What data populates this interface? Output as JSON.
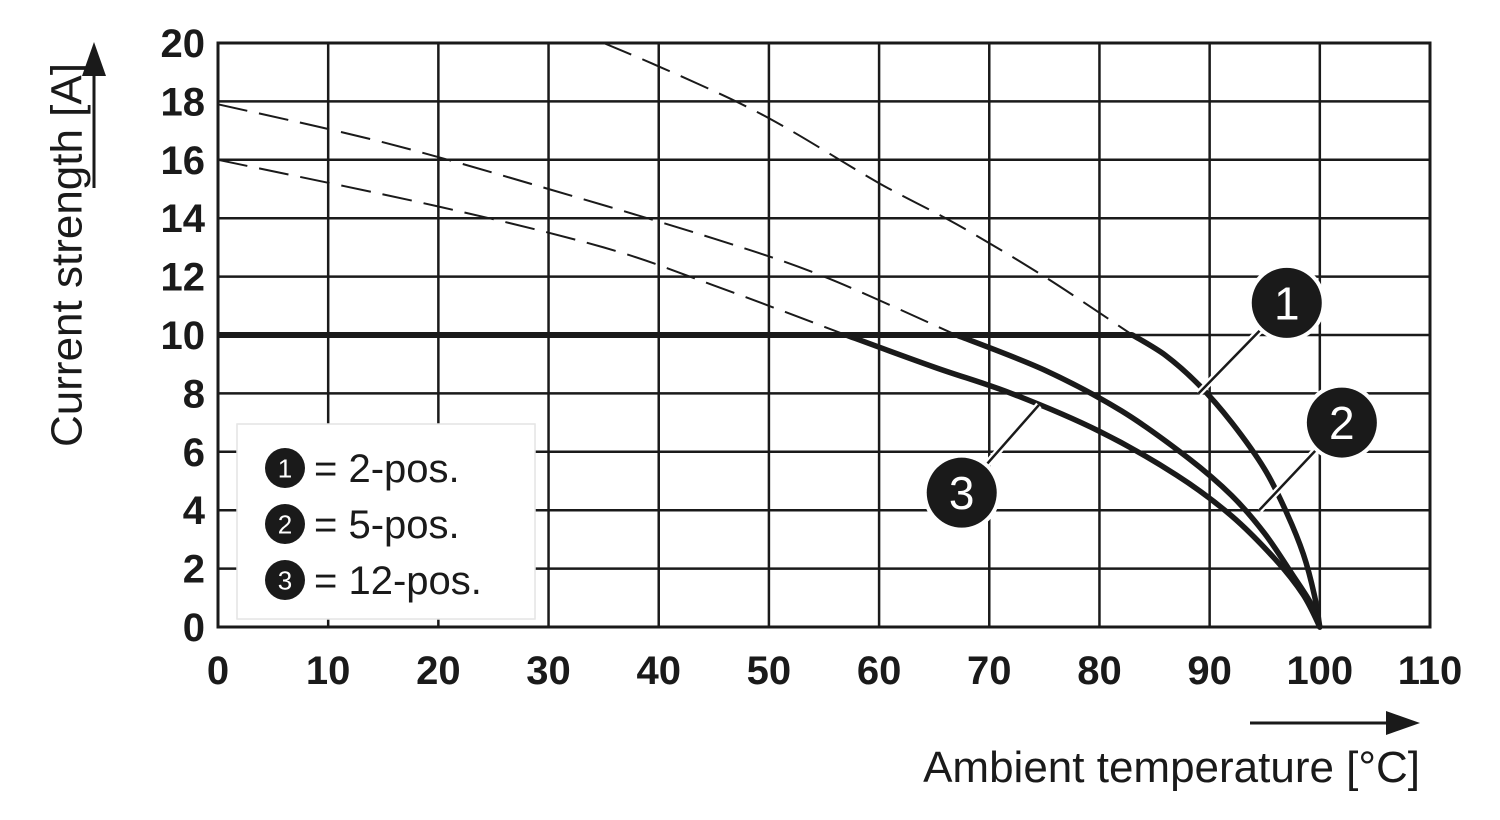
{
  "chart_data": {
    "type": "line",
    "title": "",
    "xlabel": "Ambient temperature [°C]",
    "ylabel": "Current strength [A]",
    "xlim": [
      0,
      110
    ],
    "ylim": [
      0,
      20
    ],
    "x_ticks": [
      "0",
      "10",
      "20",
      "30",
      "40",
      "50",
      "60",
      "70",
      "80",
      "90",
      "100",
      "110"
    ],
    "y_ticks": [
      "0",
      "2",
      "4",
      "6",
      "8",
      "10",
      "12",
      "14",
      "16",
      "18",
      "20"
    ],
    "grid": true,
    "legend_position": "bottom-left",
    "legend": [
      {
        "marker": "1",
        "label": "= 2-pos."
      },
      {
        "marker": "2",
        "label": "= 5-pos."
      },
      {
        "marker": "3",
        "label": "= 12-pos."
      }
    ],
    "plateau": {
      "value": 10,
      "x_range": [
        0,
        83
      ]
    },
    "series": [
      {
        "marker": "1",
        "derating": [
          [
            83,
            10
          ],
          [
            86,
            9.3
          ],
          [
            89,
            8.3
          ],
          [
            92,
            7.0
          ],
          [
            95,
            5.4
          ],
          [
            97,
            3.9
          ],
          [
            98.5,
            2.5
          ],
          [
            99.5,
            1.1
          ],
          [
            100,
            0
          ]
        ],
        "extrapolation": [
          [
            35,
            20
          ],
          [
            40,
            19.2
          ],
          [
            47,
            18
          ],
          [
            52,
            17
          ],
          [
            60,
            15.2
          ],
          [
            67,
            13.8
          ],
          [
            75,
            12
          ],
          [
            83,
            10
          ]
        ]
      },
      {
        "marker": "2",
        "derating": [
          [
            67,
            10
          ],
          [
            75,
            8.8
          ],
          [
            82,
            7.4
          ],
          [
            88,
            5.8
          ],
          [
            92,
            4.5
          ],
          [
            95,
            3.2
          ],
          [
            97.5,
            1.8
          ],
          [
            99.2,
            0.8
          ],
          [
            100,
            0
          ]
        ],
        "extrapolation": [
          [
            0,
            17.9
          ],
          [
            15,
            16.6
          ],
          [
            30,
            15.0
          ],
          [
            45,
            13.3
          ],
          [
            55,
            12.0
          ],
          [
            67,
            10
          ]
        ]
      },
      {
        "marker": "3",
        "derating": [
          [
            57,
            10
          ],
          [
            65,
            8.9
          ],
          [
            72,
            8.0
          ],
          [
            80,
            6.7
          ],
          [
            87,
            5.2
          ],
          [
            92,
            3.8
          ],
          [
            96,
            2.3
          ],
          [
            98.5,
            1.1
          ],
          [
            100,
            0
          ]
        ],
        "extrapolation": [
          [
            0,
            16
          ],
          [
            20,
            14.4
          ],
          [
            35,
            13.0
          ],
          [
            45,
            11.7
          ],
          [
            57,
            10
          ]
        ]
      }
    ],
    "callouts": [
      {
        "marker": "1",
        "at": [
          89,
          8.0
        ],
        "label_at": [
          97,
          11.1
        ]
      },
      {
        "marker": "2",
        "at": [
          94.5,
          4.0
        ],
        "label_at": [
          102,
          7.0
        ]
      },
      {
        "marker": "3",
        "at": [
          74.5,
          7.6
        ],
        "label_at": [
          67.5,
          4.6
        ]
      }
    ]
  }
}
